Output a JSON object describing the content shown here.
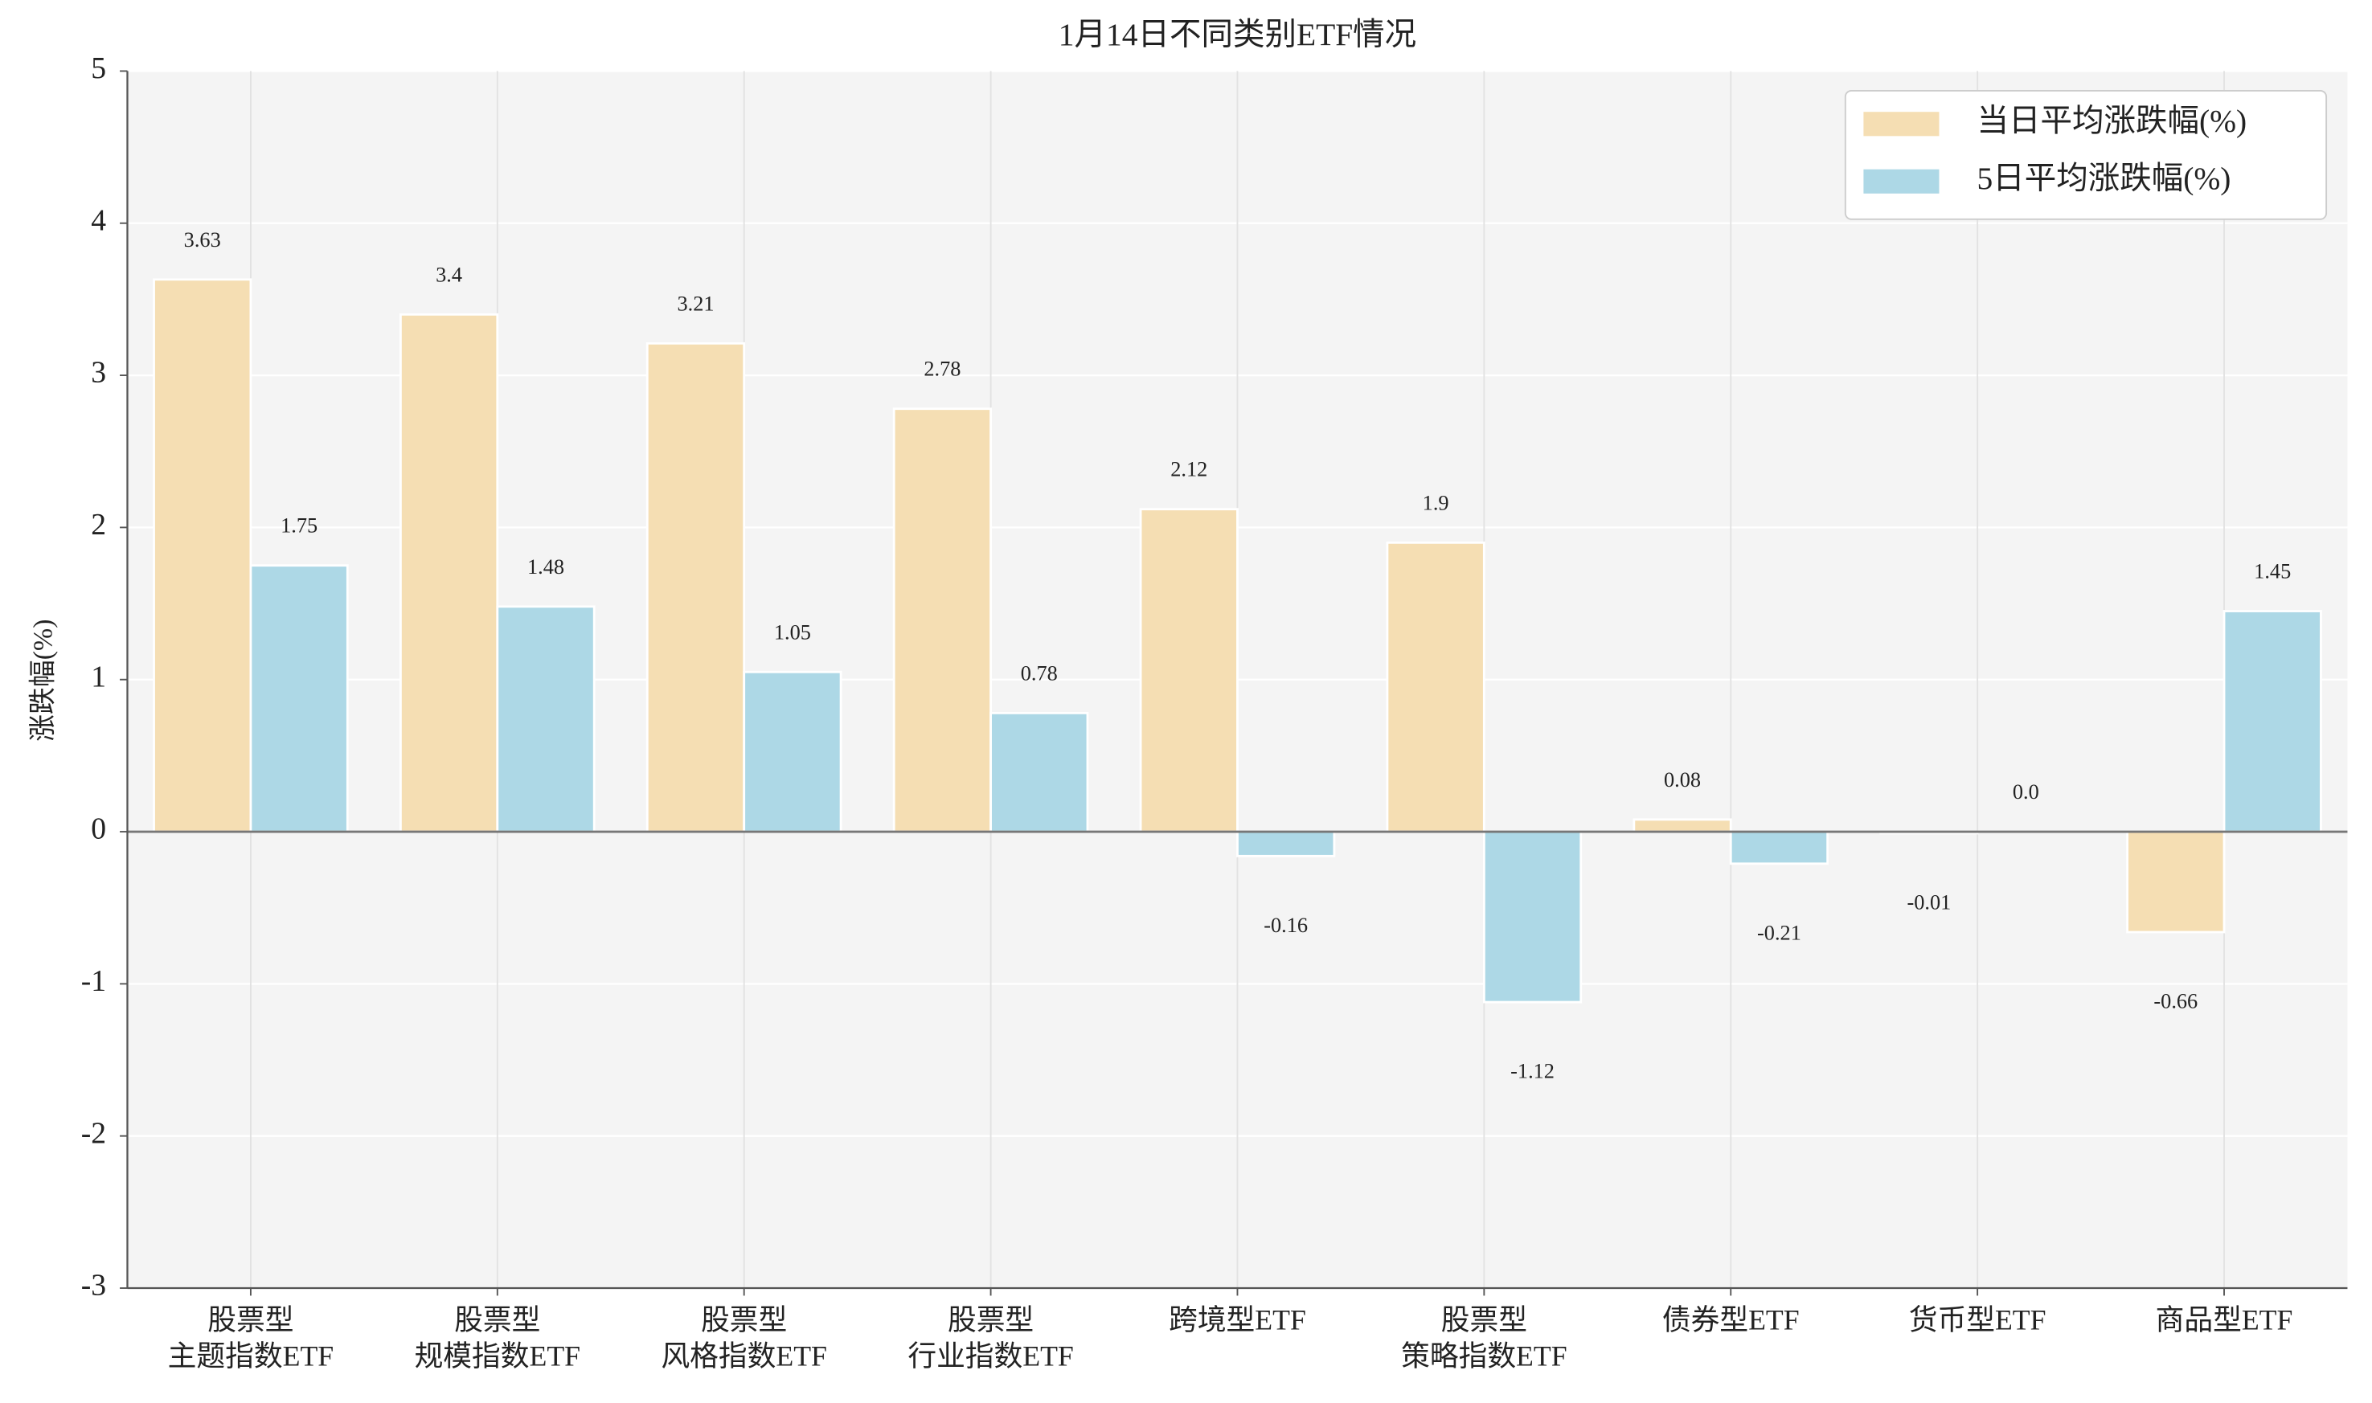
{
  "chart_data": {
    "type": "bar",
    "title": "1月14日不同类别ETF情况",
    "ylabel": "涨跌幅(%)",
    "categories": [
      "股票型\n主题指数ETF",
      "股票型\n规模指数ETF",
      "股票型\n风格指数ETF",
      "股票型\n行业指数ETF",
      "跨境型ETF",
      "股票型\n策略指数ETF",
      "债券型ETF",
      "货币型ETF",
      "商品型ETF"
    ],
    "series": [
      {
        "name": "当日平均涨跌幅(%)",
        "color": "#f5deb3",
        "values": [
          3.63,
          3.4,
          3.21,
          2.78,
          2.12,
          1.9,
          0.08,
          -0.01,
          -0.66
        ]
      },
      {
        "name": "5日平均涨跌幅(%)",
        "color": "#add8e6",
        "values": [
          1.75,
          1.48,
          1.05,
          0.78,
          -0.16,
          -1.12,
          -0.21,
          0.0,
          1.45
        ],
        "value_labels": [
          "1.75",
          "1.48",
          "1.05",
          "0.78",
          "-0.16",
          "-1.12",
          "-0.21",
          "0.0",
          "1.45"
        ]
      }
    ],
    "ylim": [
      -3,
      5
    ],
    "yticks": [
      -3,
      -2,
      -1,
      0,
      1,
      2,
      3,
      4,
      5
    ],
    "grid": true,
    "legend": "upper right"
  }
}
